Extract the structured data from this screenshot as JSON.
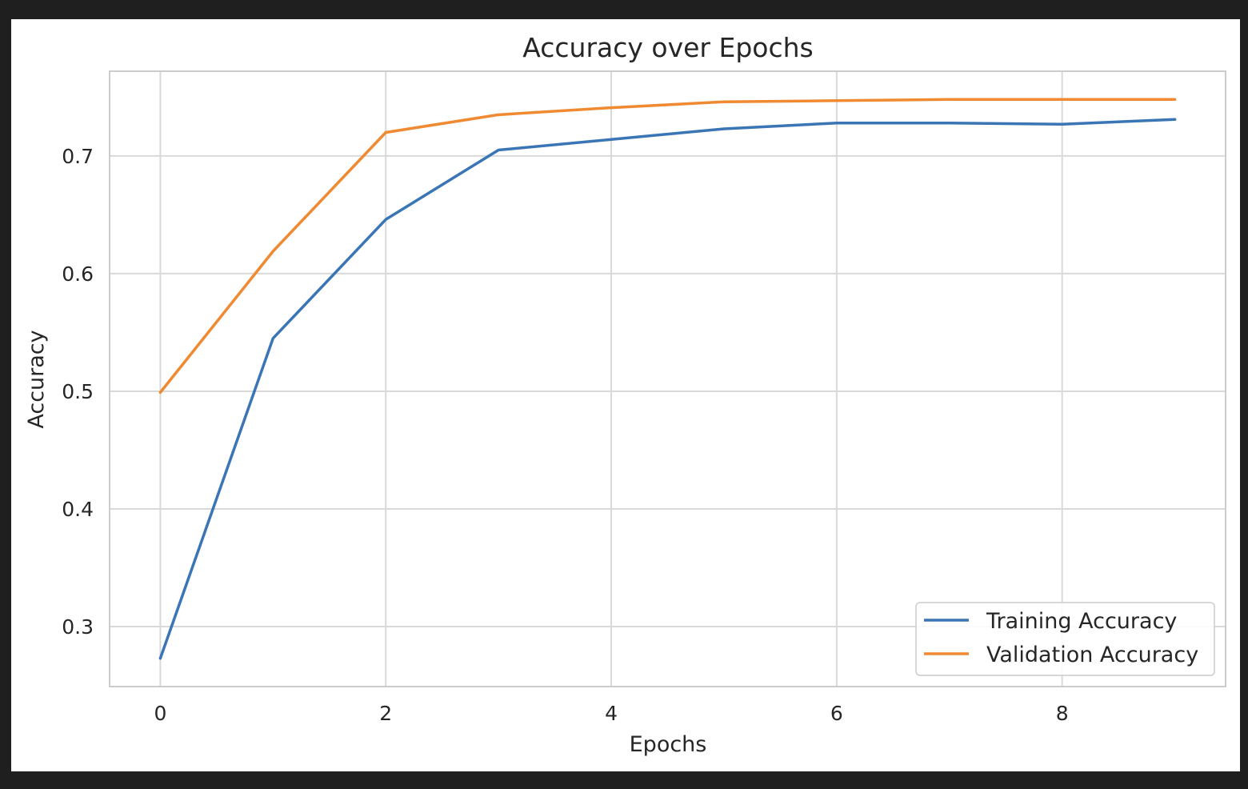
{
  "chart_data": {
    "type": "line",
    "title": "Accuracy over Epochs",
    "xlabel": "Epochs",
    "ylabel": "Accuracy",
    "x": [
      0,
      1,
      2,
      3,
      4,
      5,
      6,
      7,
      8,
      9
    ],
    "series": [
      {
        "name": "Training Accuracy",
        "color": "#3a75b5",
        "values": [
          0.273,
          0.545,
          0.646,
          0.705,
          0.714,
          0.723,
          0.728,
          0.728,
          0.727,
          0.731
        ]
      },
      {
        "name": "Validation Accuracy",
        "color": "#f08a32",
        "values": [
          0.499,
          0.619,
          0.72,
          0.735,
          0.741,
          0.746,
          0.747,
          0.748,
          0.748,
          0.748
        ]
      }
    ],
    "xticks": [
      0,
      2,
      4,
      6,
      8
    ],
    "xtick_labels": [
      "0",
      "2",
      "4",
      "6",
      "8"
    ],
    "yticks": [
      0.3,
      0.4,
      0.5,
      0.6,
      0.7
    ],
    "ytick_labels": [
      "0.3",
      "0.4",
      "0.5",
      "0.6",
      "0.7"
    ],
    "xlim": [
      -0.45,
      9.45
    ],
    "ylim": [
      0.249,
      0.772
    ],
    "grid": true,
    "legend_position": "bottom-right"
  }
}
